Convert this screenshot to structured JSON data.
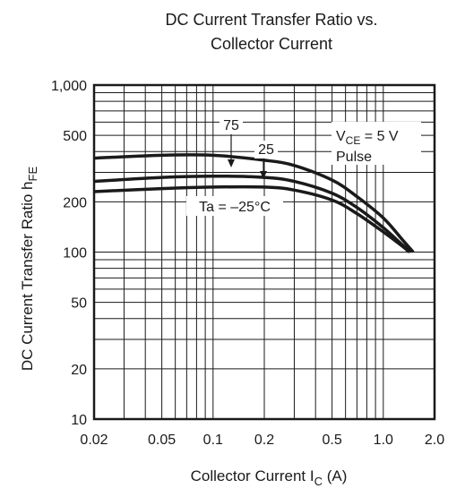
{
  "chart_data": {
    "type": "line",
    "title_lines": [
      "DC Current Transfer Ratio vs.",
      "Collector Current"
    ],
    "xlabel": {
      "main": "Collector Current  I",
      "sub": "C",
      "suffix": "  (A)"
    },
    "ylabel": {
      "main": "DC Current Transfer Ratio  h",
      "sub": "FE"
    },
    "x_scale": "log",
    "y_scale": "log",
    "xlim": [
      0.02,
      2.0
    ],
    "ylim": [
      10,
      1000
    ],
    "grid": true,
    "x_ticks": [
      {
        "value": 0.02,
        "label": "0.02"
      },
      {
        "value": 0.05,
        "label": "0.05"
      },
      {
        "value": 0.1,
        "label": "0.1"
      },
      {
        "value": 0.2,
        "label": "0.2"
      },
      {
        "value": 0.5,
        "label": "0.5"
      },
      {
        "value": 1.0,
        "label": "1.0"
      },
      {
        "value": 2.0,
        "label": "2.0"
      }
    ],
    "y_ticks": [
      {
        "value": 10,
        "label": "10"
      },
      {
        "value": 20,
        "label": "20"
      },
      {
        "value": 50,
        "label": "50"
      },
      {
        "value": 100,
        "label": "100"
      },
      {
        "value": 200,
        "label": "200"
      },
      {
        "value": 500,
        "label": "500"
      },
      {
        "value": 1000,
        "label": "1,000"
      }
    ],
    "condition": {
      "vce_main": "V",
      "vce_sub": "CE",
      "vce_rest": " = 5 V",
      "pulse": "Pulse"
    },
    "series": [
      {
        "name": "75",
        "x": [
          0.02,
          0.05,
          0.1,
          0.2,
          0.3,
          0.5,
          0.7,
          1.0,
          1.3,
          1.5
        ],
        "y": [
          365,
          380,
          380,
          355,
          330,
          270,
          215,
          160,
          118,
          100
        ]
      },
      {
        "name": "25",
        "x": [
          0.02,
          0.05,
          0.1,
          0.2,
          0.3,
          0.5,
          0.7,
          1.0,
          1.3,
          1.45
        ],
        "y": [
          265,
          280,
          285,
          280,
          265,
          225,
          185,
          140,
          110,
          100
        ]
      },
      {
        "name": "Ta = –25°C",
        "x": [
          0.02,
          0.05,
          0.1,
          0.2,
          0.3,
          0.5,
          0.7,
          1.0,
          1.3,
          1.42
        ],
        "y": [
          230,
          240,
          245,
          245,
          235,
          205,
          170,
          132,
          108,
          100
        ]
      }
    ]
  }
}
